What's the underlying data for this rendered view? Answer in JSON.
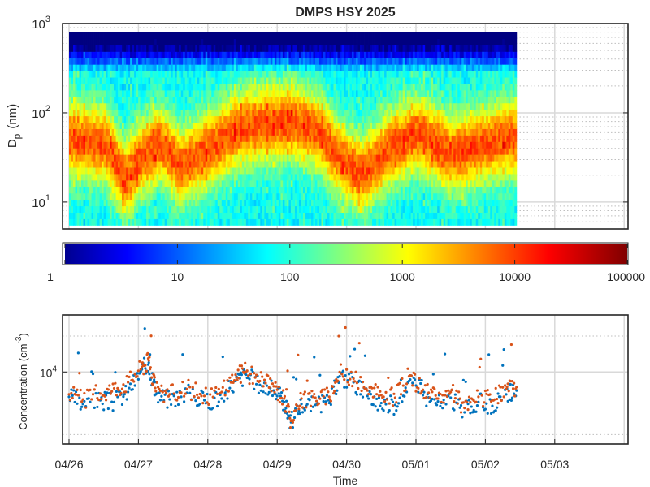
{
  "chart_data": [
    {
      "type": "heatmap",
      "title": "DMPS HSY 2025",
      "ylabel_main": "D",
      "ylabel_sub": "p",
      "ylabel_unit": "(nm)",
      "yscale": "log",
      "ylim": [
        5,
        1000
      ],
      "ytick_labels": [
        {
          "value": 10,
          "base": "10",
          "exp": "1"
        },
        {
          "value": 100,
          "base": "10",
          "exp": "2"
        },
        {
          "value": 1000,
          "base": "10",
          "exp": "3"
        }
      ],
      "x_range_days": [
        "04/26",
        "05/04"
      ],
      "data_extent": [
        "04/26",
        "05/02 ~11:00"
      ],
      "colorbar": {
        "scale": "log",
        "range": [
          1,
          100000
        ],
        "colormap": "jet",
        "ticks": [
          {
            "value": 1,
            "label": "1"
          },
          {
            "value": 10,
            "label": "10"
          },
          {
            "value": 100,
            "label": "100"
          },
          {
            "value": 1000,
            "label": "1000"
          },
          {
            "value": 10000,
            "label": "10000"
          },
          {
            "value": 100000,
            "label": "100000"
          }
        ]
      },
      "grid": true,
      "mode_diameter_nm_by_time": [
        {
          "t": 0.0,
          "d": 50
        },
        {
          "t": 0.5,
          "d": 45
        },
        {
          "t": 0.8,
          "d": 18
        },
        {
          "t": 1.0,
          "d": 30
        },
        {
          "t": 1.3,
          "d": 45
        },
        {
          "t": 1.6,
          "d": 25
        },
        {
          "t": 2.0,
          "d": 40
        },
        {
          "t": 2.5,
          "d": 70
        },
        {
          "t": 3.2,
          "d": 80
        },
        {
          "t": 3.6,
          "d": 60
        },
        {
          "t": 3.9,
          "d": 30
        },
        {
          "t": 4.2,
          "d": 20
        },
        {
          "t": 4.6,
          "d": 40
        },
        {
          "t": 5.0,
          "d": 60
        },
        {
          "t": 5.5,
          "d": 35
        },
        {
          "t": 6.0,
          "d": 45
        },
        {
          "t": 6.45,
          "d": 55
        }
      ]
    },
    {
      "type": "scatter",
      "xlabel": "Time",
      "ylabel_main": "Concentration (cm",
      "ylabel_exp": "-3",
      "ylabel_close": ")",
      "yscale": "log",
      "ylim": [
        2500,
        30000
      ],
      "ytick_labels": [
        {
          "value": 10000,
          "base": "10",
          "exp": "4"
        }
      ],
      "x_tick_labels": [
        "04/26",
        "04/27",
        "04/28",
        "04/29",
        "04/30",
        "05/01",
        "05/02",
        "05/03"
      ],
      "grid": true,
      "series": [
        {
          "color": "#0072bd",
          "values": [
            [
              0.0,
              6200
            ],
            [
              0.2,
              5400
            ],
            [
              0.45,
              5800
            ],
            [
              0.65,
              5600
            ],
            [
              0.85,
              6800
            ],
            [
              1.05,
              10500
            ],
            [
              1.15,
              12000
            ],
            [
              1.25,
              6500
            ],
            [
              1.45,
              5900
            ],
            [
              1.7,
              6700
            ],
            [
              1.95,
              5800
            ],
            [
              2.2,
              6000
            ],
            [
              2.4,
              8400
            ],
            [
              2.55,
              9500
            ],
            [
              2.75,
              7800
            ],
            [
              2.95,
              7000
            ],
            [
              3.1,
              5600
            ],
            [
              3.2,
              3800
            ],
            [
              3.35,
              5400
            ],
            [
              3.55,
              5300
            ],
            [
              3.75,
              5500
            ],
            [
              3.9,
              9200
            ],
            [
              4.1,
              8200
            ],
            [
              4.3,
              6300
            ],
            [
              4.5,
              5500
            ],
            [
              4.7,
              5300
            ],
            [
              4.9,
              8400
            ],
            [
              5.1,
              6400
            ],
            [
              5.3,
              5300
            ],
            [
              5.5,
              6100
            ],
            [
              5.7,
              4600
            ],
            [
              5.9,
              5600
            ],
            [
              6.1,
              5200
            ],
            [
              6.3,
              6500
            ],
            [
              6.45,
              7000
            ]
          ]
        },
        {
          "color": "#d95319",
          "values": [
            [
              0.0,
              6500
            ],
            [
              0.2,
              5900
            ],
            [
              0.45,
              6600
            ],
            [
              0.65,
              7300
            ],
            [
              0.85,
              8200
            ],
            [
              1.05,
              11000
            ],
            [
              1.15,
              12500
            ],
            [
              1.25,
              6900
            ],
            [
              1.45,
              6500
            ],
            [
              1.7,
              7200
            ],
            [
              1.95,
              6300
            ],
            [
              2.2,
              6800
            ],
            [
              2.4,
              9500
            ],
            [
              2.55,
              10000
            ],
            [
              2.75,
              8400
            ],
            [
              2.95,
              7600
            ],
            [
              3.1,
              6000
            ],
            [
              3.2,
              3900
            ],
            [
              3.35,
              6000
            ],
            [
              3.55,
              6100
            ],
            [
              3.75,
              6200
            ],
            [
              3.9,
              10000
            ],
            [
              4.1,
              8800
            ],
            [
              4.3,
              7000
            ],
            [
              4.5,
              6400
            ],
            [
              4.7,
              6100
            ],
            [
              4.9,
              9200
            ],
            [
              5.1,
              7100
            ],
            [
              5.3,
              6000
            ],
            [
              5.5,
              6800
            ],
            [
              5.7,
              5000
            ],
            [
              5.9,
              6200
            ],
            [
              6.1,
              5800
            ],
            [
              6.3,
              7200
            ],
            [
              6.45,
              7500
            ]
          ]
        }
      ]
    }
  ]
}
